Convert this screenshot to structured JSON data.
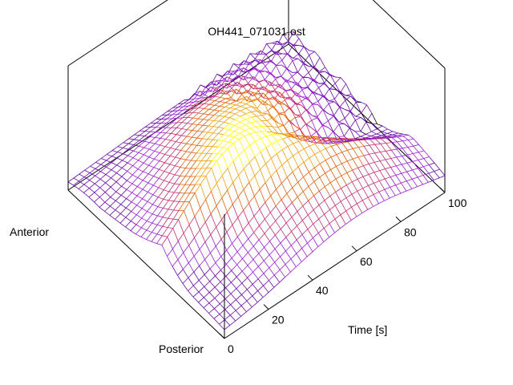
{
  "chart_data": {
    "type": "surface-3d",
    "title": "OH441_071031.ost",
    "xlabel": "Time [s]",
    "xlim": [
      0,
      100
    ],
    "xticks": [
      0,
      20,
      40,
      60,
      80,
      100
    ],
    "y_end_labels": [
      "Anterior",
      "Posterior"
    ],
    "render": "wireframe",
    "colormap": [
      "#000000",
      "#6a0aa8",
      "#9a1fd0",
      "#c23070",
      "#e06010",
      "#f0a010",
      "#ffff00"
    ],
    "ridges": [
      {
        "position": 0.0,
        "peak_time": 60,
        "peak": 0.1,
        "width": 60
      },
      {
        "position": 0.2,
        "peak_time": 50,
        "peak": 0.5,
        "width": 38
      },
      {
        "position": 0.42,
        "peak_time": 45,
        "peak": 0.82,
        "width": 36
      },
      {
        "position": 0.6,
        "peak_time": 35,
        "peak": 1.0,
        "width": 34
      },
      {
        "position": 0.78,
        "peak_time": 58,
        "peak": 0.7,
        "width": 40
      },
      {
        "position": 1.0,
        "peak_time": 60,
        "peak": 0.35,
        "width": 42
      }
    ]
  }
}
